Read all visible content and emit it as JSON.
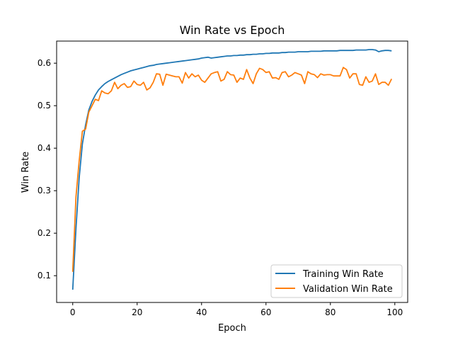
{
  "chart_data": {
    "type": "line",
    "title": "Win Rate vs Epoch",
    "xlabel": "Epoch",
    "ylabel": "Win Rate",
    "xlim": [
      -5,
      104
    ],
    "ylim": [
      0.037,
      0.652
    ],
    "xticks": [
      0,
      20,
      40,
      60,
      80,
      100
    ],
    "yticks": [
      0.1,
      0.2,
      0.3,
      0.4,
      0.5,
      0.6
    ],
    "grid": false,
    "legend_position": "lower right",
    "series": [
      {
        "name": "Training Win Rate",
        "color": "#1f77b4",
        "x": [
          0,
          1,
          2,
          3,
          4,
          5,
          6,
          7,
          8,
          9,
          10,
          11,
          12,
          13,
          14,
          15,
          16,
          17,
          18,
          19,
          20,
          21,
          22,
          23,
          24,
          25,
          26,
          27,
          28,
          29,
          30,
          31,
          32,
          33,
          34,
          35,
          36,
          37,
          38,
          39,
          40,
          41,
          42,
          43,
          44,
          45,
          46,
          47,
          48,
          49,
          50,
          51,
          52,
          53,
          54,
          55,
          56,
          57,
          58,
          59,
          60,
          61,
          62,
          63,
          64,
          65,
          66,
          67,
          68,
          69,
          70,
          71,
          72,
          73,
          74,
          75,
          76,
          77,
          78,
          79,
          80,
          81,
          82,
          83,
          84,
          85,
          86,
          87,
          88,
          89,
          90,
          91,
          92,
          93,
          94,
          95,
          96,
          97,
          98,
          99
        ],
        "values": [
          0.067,
          0.21,
          0.33,
          0.41,
          0.455,
          0.49,
          0.51,
          0.525,
          0.537,
          0.545,
          0.552,
          0.557,
          0.561,
          0.565,
          0.569,
          0.573,
          0.576,
          0.579,
          0.582,
          0.584,
          0.586,
          0.588,
          0.59,
          0.592,
          0.594,
          0.595,
          0.597,
          0.598,
          0.599,
          0.6,
          0.601,
          0.602,
          0.603,
          0.604,
          0.605,
          0.606,
          0.607,
          0.608,
          0.609,
          0.61,
          0.612,
          0.613,
          0.614,
          0.612,
          0.613,
          0.614,
          0.615,
          0.616,
          0.617,
          0.617,
          0.618,
          0.618,
          0.619,
          0.619,
          0.62,
          0.62,
          0.621,
          0.621,
          0.622,
          0.622,
          0.623,
          0.623,
          0.624,
          0.624,
          0.624,
          0.625,
          0.625,
          0.626,
          0.626,
          0.626,
          0.627,
          0.627,
          0.627,
          0.627,
          0.628,
          0.628,
          0.628,
          0.628,
          0.629,
          0.629,
          0.629,
          0.629,
          0.629,
          0.63,
          0.63,
          0.63,
          0.63,
          0.63,
          0.631,
          0.631,
          0.631,
          0.631,
          0.632,
          0.632,
          0.631,
          0.627,
          0.629,
          0.63,
          0.63,
          0.629
        ]
      },
      {
        "name": "Validation Win Rate",
        "color": "#ff7f0e",
        "x": [
          0,
          1,
          2,
          3,
          4,
          5,
          6,
          7,
          8,
          9,
          10,
          11,
          12,
          13,
          14,
          15,
          16,
          17,
          18,
          19,
          20,
          21,
          22,
          23,
          24,
          25,
          26,
          27,
          28,
          29,
          30,
          31,
          32,
          33,
          34,
          35,
          36,
          37,
          38,
          39,
          40,
          41,
          42,
          43,
          44,
          45,
          46,
          47,
          48,
          49,
          50,
          51,
          52,
          53,
          54,
          55,
          56,
          57,
          58,
          59,
          60,
          61,
          62,
          63,
          64,
          65,
          66,
          67,
          68,
          69,
          70,
          71,
          72,
          73,
          74,
          75,
          76,
          77,
          78,
          79,
          80,
          81,
          82,
          83,
          84,
          85,
          86,
          87,
          88,
          89,
          90,
          91,
          92,
          93,
          94,
          95,
          96,
          97,
          98,
          99
        ],
        "values": [
          0.109,
          0.285,
          0.37,
          0.44,
          0.445,
          0.485,
          0.5,
          0.515,
          0.512,
          0.535,
          0.53,
          0.528,
          0.535,
          0.555,
          0.54,
          0.548,
          0.552,
          0.543,
          0.545,
          0.558,
          0.55,
          0.548,
          0.555,
          0.537,
          0.542,
          0.555,
          0.575,
          0.574,
          0.548,
          0.574,
          0.572,
          0.57,
          0.568,
          0.568,
          0.553,
          0.578,
          0.565,
          0.575,
          0.568,
          0.572,
          0.56,
          0.555,
          0.565,
          0.575,
          0.578,
          0.58,
          0.558,
          0.562,
          0.58,
          0.573,
          0.572,
          0.555,
          0.565,
          0.562,
          0.585,
          0.565,
          0.552,
          0.575,
          0.588,
          0.585,
          0.578,
          0.58,
          0.565,
          0.566,
          0.562,
          0.578,
          0.58,
          0.568,
          0.572,
          0.578,
          0.575,
          0.572,
          0.552,
          0.58,
          0.575,
          0.573,
          0.566,
          0.575,
          0.572,
          0.573,
          0.573,
          0.57,
          0.57,
          0.57,
          0.59,
          0.585,
          0.565,
          0.575,
          0.575,
          0.55,
          0.548,
          0.568,
          0.555,
          0.558,
          0.575,
          0.55,
          0.555,
          0.555,
          0.548,
          0.563
        ]
      }
    ]
  }
}
